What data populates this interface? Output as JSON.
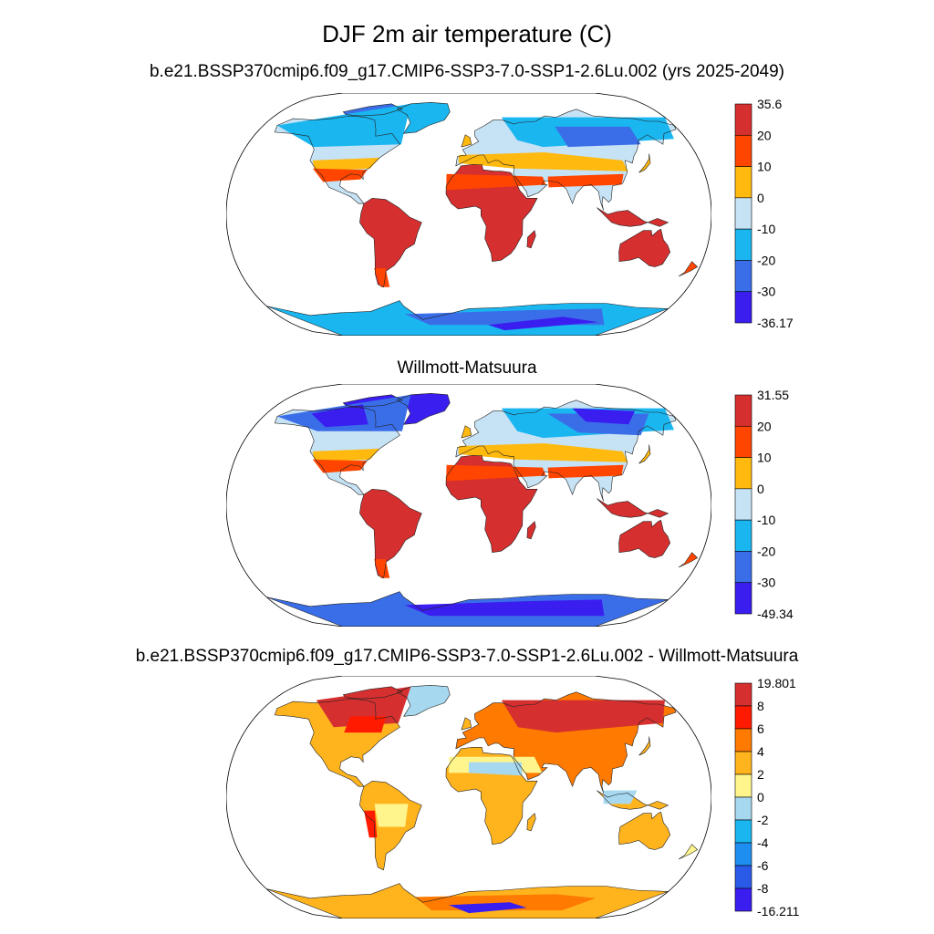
{
  "figure": {
    "title": "DJF 2m air temperature (C)"
  },
  "panels": [
    {
      "title": "b.e21.BSSP370cmip6.f09_g17.CMIP6-SSP3-7.0-SSP1-2.6Lu.002 (yrs 2025-2049)",
      "colorbar": {
        "labels": [
          "35.6",
          "20",
          "10",
          "0",
          "-10",
          "-20",
          "-30",
          "-36.17"
        ],
        "colors": [
          "#d62f2f",
          "#ff4500",
          "#ffb90f",
          "#c6e2f5",
          "#1ab6f0",
          "#3a6ee8",
          "#3a1ef0"
        ]
      },
      "field": "model"
    },
    {
      "title": "Willmott-Matsuura",
      "colorbar": {
        "labels": [
          "31.55",
          "20",
          "10",
          "0",
          "-10",
          "-20",
          "-30",
          "-49.34"
        ],
        "colors": [
          "#d62f2f",
          "#ff4500",
          "#ffb90f",
          "#c6e2f5",
          "#1ab6f0",
          "#3a6ee8",
          "#3a1ef0"
        ]
      },
      "field": "obs"
    },
    {
      "title": "b.e21.BSSP370cmip6.f09_g17.CMIP6-SSP3-7.0-SSP1-2.6Lu.002 - Willmott-Matsuura",
      "colorbar": {
        "labels": [
          "19.801",
          "8",
          "6",
          "4",
          "2",
          "0",
          "-2",
          "-4",
          "-6",
          "-8",
          "-16.211"
        ],
        "colors": [
          "#d62f2f",
          "#ff1a00",
          "#ff7a00",
          "#ffb41e",
          "#fff58c",
          "#a6d8f0",
          "#1ab6f0",
          "#1e8ef0",
          "#2a5ae8",
          "#3a1ef0"
        ]
      },
      "field": "diff"
    }
  ]
}
